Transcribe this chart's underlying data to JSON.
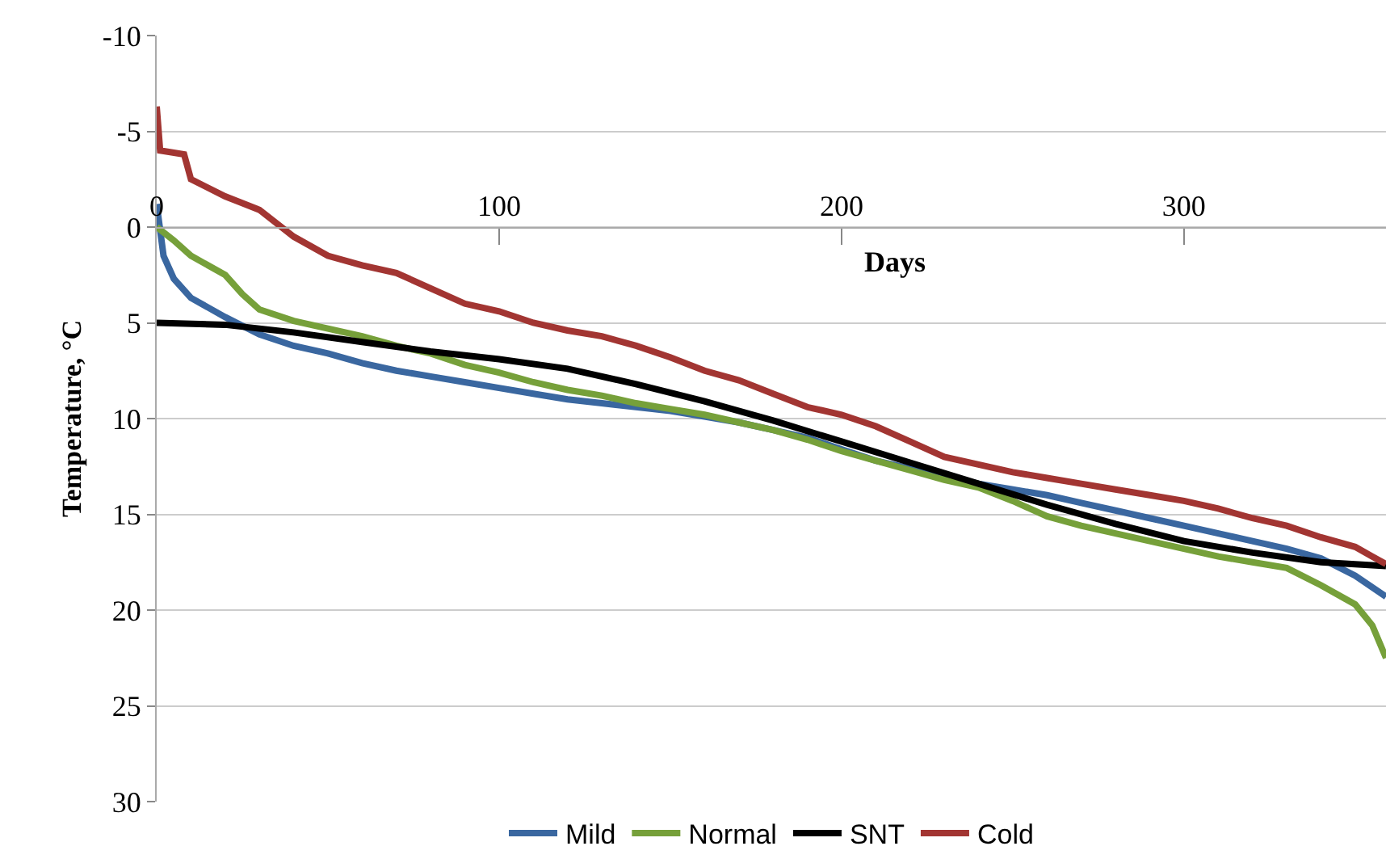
{
  "chart_data": {
    "type": "line",
    "xlabel": "Days",
    "ylabel": "Temperature, °C",
    "xlim": [
      0,
      359
    ],
    "xticks": [
      0,
      100,
      200,
      300
    ],
    "ylim": [
      30,
      -10
    ],
    "yticks": [
      -10,
      -5,
      0,
      5,
      10,
      15,
      20,
      25,
      30
    ],
    "grid": "y",
    "legend": "bottom",
    "marker": "none",
    "line_style": "solid",
    "series": [
      {
        "name": "Mild",
        "color": "#3a67a0",
        "x": [
          0,
          2,
          5,
          10,
          20,
          30,
          40,
          50,
          60,
          70,
          80,
          90,
          100,
          110,
          120,
          130,
          140,
          150,
          160,
          170,
          180,
          190,
          200,
          210,
          220,
          230,
          240,
          250,
          260,
          270,
          280,
          290,
          300,
          310,
          320,
          330,
          340,
          350,
          359
        ],
        "values": [
          -1.2,
          1.5,
          2.7,
          3.7,
          4.7,
          5.6,
          6.2,
          6.6,
          7.1,
          7.5,
          7.8,
          8.1,
          8.4,
          8.7,
          9,
          9.2,
          9.4,
          9.6,
          9.9,
          10.2,
          10.6,
          11,
          11.6,
          12.2,
          12.6,
          13,
          13.4,
          13.7,
          14,
          14.4,
          14.8,
          15.2,
          15.6,
          16,
          16.4,
          16.8,
          17.3,
          18.2,
          19.3
        ]
      },
      {
        "name": "Normal",
        "color": "#76a03a",
        "x": [
          0,
          5,
          10,
          20,
          25,
          30,
          40,
          50,
          60,
          70,
          80,
          90,
          100,
          110,
          120,
          130,
          140,
          150,
          160,
          170,
          180,
          190,
          200,
          210,
          220,
          230,
          240,
          250,
          260,
          270,
          280,
          290,
          300,
          310,
          320,
          330,
          340,
          350,
          355,
          359
        ],
        "values": [
          0,
          0.7,
          1.5,
          2.5,
          3.5,
          4.3,
          4.9,
          5.3,
          5.7,
          6.2,
          6.6,
          7.2,
          7.6,
          8.1,
          8.5,
          8.8,
          9.2,
          9.5,
          9.8,
          10.2,
          10.6,
          11.1,
          11.7,
          12.2,
          12.7,
          13.2,
          13.6,
          14.3,
          15.1,
          15.6,
          16,
          16.4,
          16.8,
          17.2,
          17.5,
          17.8,
          18.7,
          19.7,
          20.8,
          22.5
        ]
      },
      {
        "name": "SNT",
        "color": "#000000",
        "x": [
          0,
          20,
          40,
          60,
          80,
          100,
          120,
          140,
          160,
          180,
          200,
          220,
          240,
          260,
          280,
          300,
          320,
          340,
          359
        ],
        "values": [
          5,
          5.1,
          5.5,
          6,
          6.5,
          6.9,
          7.4,
          8.2,
          9.1,
          10.1,
          11.2,
          12.3,
          13.4,
          14.5,
          15.5,
          16.4,
          17,
          17.5,
          17.7
        ]
      },
      {
        "name": "Cold",
        "color": "#a23532",
        "x": [
          0,
          1,
          8,
          10,
          20,
          30,
          40,
          50,
          60,
          70,
          80,
          90,
          100,
          110,
          120,
          130,
          140,
          150,
          160,
          170,
          180,
          190,
          200,
          210,
          220,
          230,
          240,
          250,
          260,
          270,
          280,
          290,
          300,
          310,
          320,
          330,
          340,
          350,
          355,
          359
        ],
        "values": [
          -6.3,
          -4,
          -3.8,
          -2.5,
          -1.6,
          -0.9,
          0.5,
          1.5,
          2,
          2.4,
          3.2,
          4,
          4.4,
          5,
          5.4,
          5.7,
          6.2,
          6.8,
          7.5,
          8,
          8.7,
          9.4,
          9.8,
          10.4,
          11.2,
          12,
          12.4,
          12.8,
          13.1,
          13.4,
          13.7,
          14,
          14.3,
          14.7,
          15.2,
          15.6,
          16.2,
          16.7,
          17.2,
          17.6
        ]
      }
    ]
  }
}
